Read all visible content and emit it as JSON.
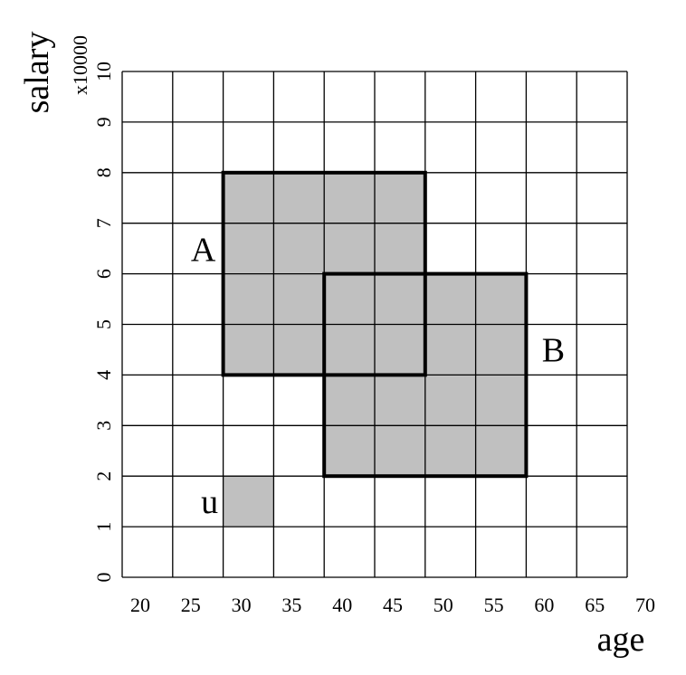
{
  "axes": {
    "x": {
      "label": "age",
      "range": [
        20,
        70
      ],
      "step": 5,
      "ticks": [
        "20",
        "25",
        "30",
        "35",
        "40",
        "45",
        "50",
        "55",
        "60",
        "65",
        "70"
      ]
    },
    "y": {
      "label": "salary",
      "unit": "x10000",
      "range": [
        0,
        10
      ],
      "step": 1,
      "ticks": [
        "0",
        "1",
        "2",
        "3",
        "4",
        "5",
        "6",
        "7",
        "8",
        "9",
        "10"
      ]
    }
  },
  "grid": true,
  "regions": [
    {
      "id": "A",
      "label": "A",
      "x": [
        30,
        50
      ],
      "y": [
        4,
        8
      ]
    },
    {
      "id": "B",
      "label": "B",
      "x": [
        40,
        60
      ],
      "y": [
        2,
        6
      ]
    }
  ],
  "point": {
    "id": "u",
    "label": "u",
    "x": [
      30,
      35
    ],
    "y": [
      1,
      2
    ]
  },
  "colors": {
    "fill": "#c0c0c0",
    "grid": "#000000",
    "outline": "#000000"
  }
}
